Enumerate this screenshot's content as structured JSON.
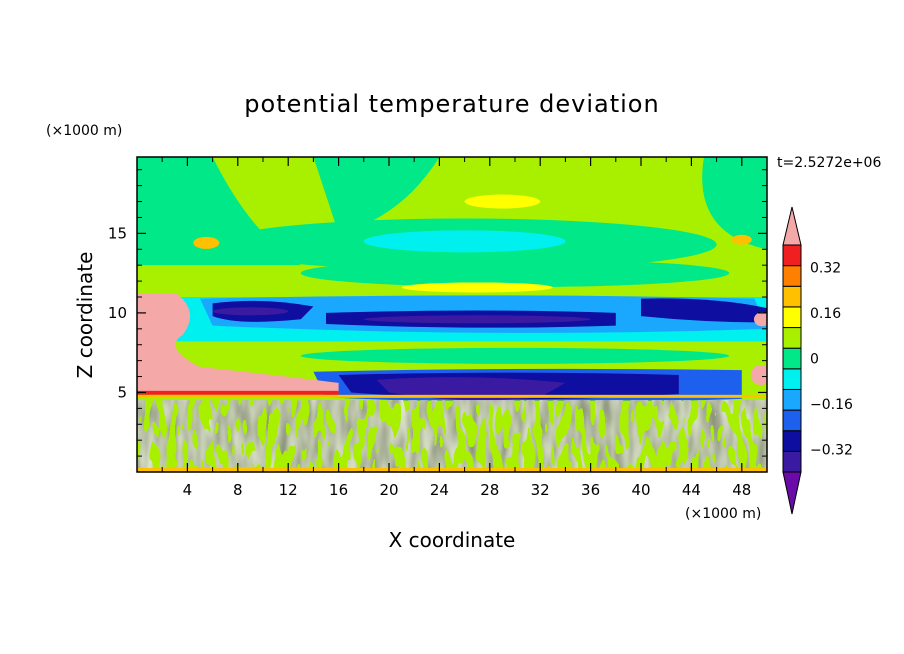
{
  "chart_data": {
    "type": "heatmap",
    "title": "potential temperature deviation",
    "xlabel": "X coordinate",
    "ylabel": "Z coordinate",
    "x_unit": "(×1000 m)",
    "y_unit": "(×1000 m)",
    "time_label": "t=2.5272e+06",
    "xlim": [
      0,
      50
    ],
    "ylim": [
      0,
      19.8
    ],
    "x_ticks": [
      "4",
      "8",
      "12",
      "16",
      "20",
      "24",
      "28",
      "32",
      "36",
      "40",
      "44",
      "48"
    ],
    "y_ticks": [
      "5",
      "10",
      "15"
    ],
    "colorbar": {
      "levels": [
        -0.48,
        -0.4,
        -0.32,
        -0.24,
        -0.16,
        -0.08,
        0,
        0.08,
        0.16,
        0.24,
        0.32,
        0.4,
        0.48
      ],
      "tick_labels": [
        "0.32",
        "0.16",
        "0",
        "−0.16",
        "−0.32"
      ],
      "tick_values": [
        0.32,
        0.16,
        0,
        -0.16,
        -0.32
      ],
      "colors": [
        "#6a0aa8",
        "#3a1aa0",
        "#0e0ea0",
        "#1e60ee",
        "#1aa8ff",
        "#00f0f0",
        "#00e888",
        "#a8f000",
        "#ffff00",
        "#ffc000",
        "#ff8000",
        "#f02020",
        "#f5a8a8"
      ],
      "extend": "both"
    },
    "features": [
      {
        "band": "surface noise layer",
        "z": [
          0,
          4.5
        ],
        "field": "fluctuating near 0 (-0.08 to 0.08)"
      },
      {
        "band": "warm anomaly near z=5",
        "z": [
          4.5,
          5.2
        ],
        "x": [
          0,
          16
        ],
        "value": 0.48
      },
      {
        "band": "lower cold band",
        "z": [
          4.2,
          6.2
        ],
        "x": [
          16,
          46
        ],
        "value": -0.4
      },
      {
        "band": "upper cold band",
        "z": [
          8.8,
          10.8
        ],
        "x": [
          8,
          50
        ],
        "value": -0.4
      },
      {
        "band": "warm region left edge",
        "z": [
          5,
          11
        ],
        "x": [
          0,
          5
        ],
        "value": 0.48
      },
      {
        "band": "upper layers",
        "z": [
          12,
          19.8
        ],
        "field": "mostly 0 to 0.08"
      }
    ]
  }
}
